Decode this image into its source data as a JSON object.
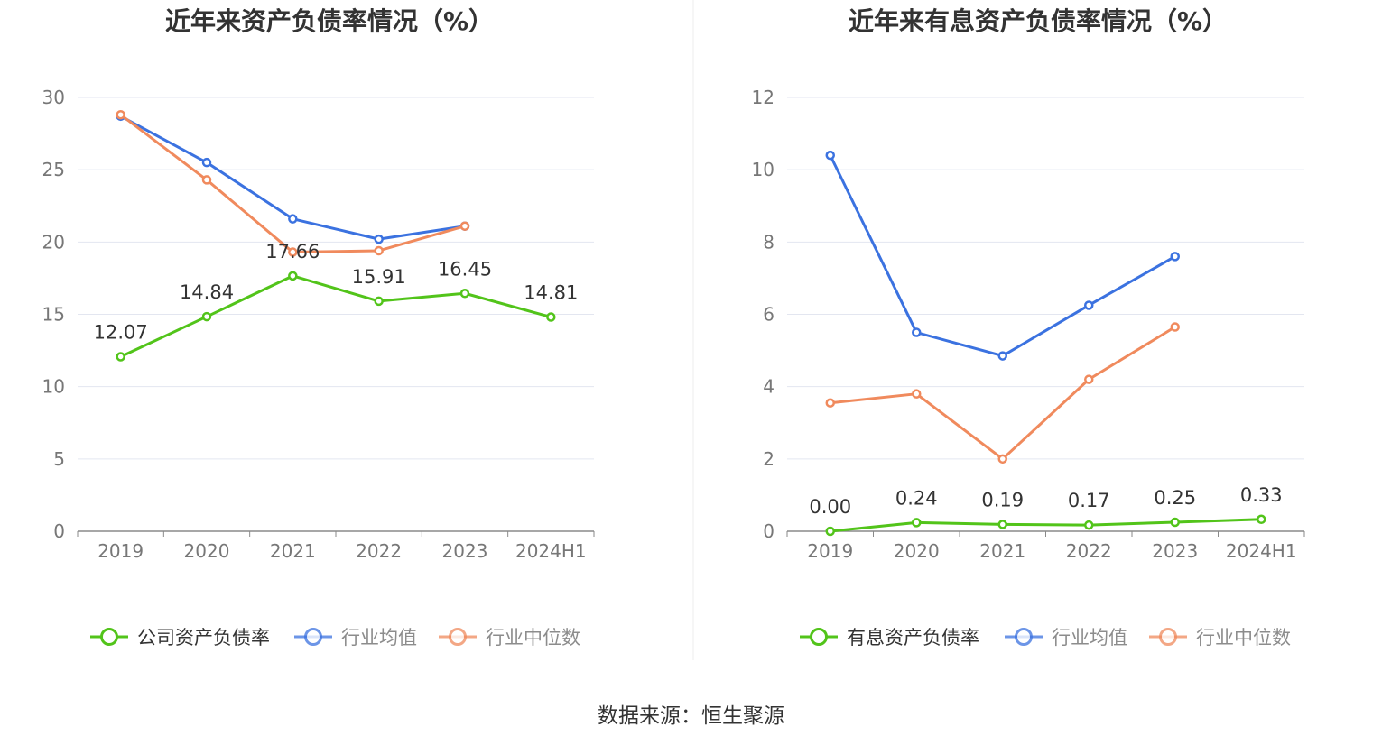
{
  "colors": {
    "green": "#52c41a",
    "blue": "#3b72e0",
    "orange": "#f08a5d",
    "grid": "#e3e6f0",
    "axis": "#8a8a8a",
    "divider": "#eeeeee"
  },
  "source_text": "数据来源：恒生聚源",
  "chart_data": [
    {
      "type": "line",
      "title": "近年来资产负债率情况（%）",
      "categories": [
        "2019",
        "2020",
        "2021",
        "2022",
        "2023",
        "2024H1"
      ],
      "ylim": [
        0,
        30
      ],
      "yticks": [
        0,
        5,
        10,
        15,
        20,
        25,
        30
      ],
      "grid": true,
      "legend_position": "bottom",
      "series": [
        {
          "name": "公司资产负债率",
          "color": "#52c41a",
          "values": [
            12.07,
            14.84,
            17.66,
            15.91,
            16.45,
            14.81
          ],
          "labels": [
            "12.07",
            "14.84",
            "17.66",
            "15.91",
            "16.45",
            "14.81"
          ]
        },
        {
          "name": "行业均值",
          "color": "#3b72e0",
          "values": [
            28.7,
            25.5,
            21.6,
            20.2,
            21.1,
            null
          ]
        },
        {
          "name": "行业中位数",
          "color": "#f08a5d",
          "values": [
            28.8,
            24.3,
            19.3,
            19.4,
            21.1,
            null
          ]
        }
      ]
    },
    {
      "type": "line",
      "title": "近年来有息资产负债率情况（%）",
      "categories": [
        "2019",
        "2020",
        "2021",
        "2022",
        "2023",
        "2024H1"
      ],
      "ylim": [
        0,
        12
      ],
      "yticks": [
        0,
        2,
        4,
        6,
        8,
        10,
        12
      ],
      "grid": true,
      "legend_position": "bottom",
      "series": [
        {
          "name": "有息资产负债率",
          "color": "#52c41a",
          "values": [
            0.0,
            0.24,
            0.19,
            0.17,
            0.25,
            0.33
          ],
          "labels": [
            "0.00",
            "0.24",
            "0.19",
            "0.17",
            "0.25",
            "0.33"
          ]
        },
        {
          "name": "行业均值",
          "color": "#3b72e0",
          "values": [
            10.4,
            5.5,
            4.85,
            6.25,
            7.6,
            null
          ]
        },
        {
          "name": "行业中位数",
          "color": "#f08a5d",
          "values": [
            3.55,
            3.8,
            2.0,
            4.2,
            5.65,
            null
          ]
        }
      ]
    }
  ]
}
